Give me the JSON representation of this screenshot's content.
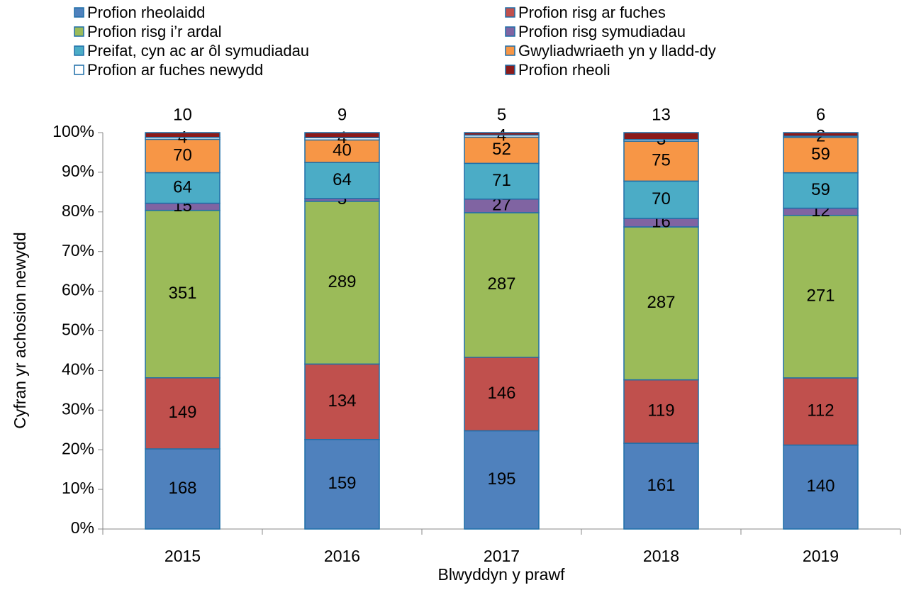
{
  "chart_data": {
    "type": "bar",
    "stacking": "percent",
    "x_label": "Blwyddyn y prawf",
    "y_label": "Cyfran yr achosion newydd",
    "categories": [
      "2015",
      "2016",
      "2017",
      "2018",
      "2019"
    ],
    "ylim": [
      0,
      100
    ],
    "yticks": [
      {
        "value": 0,
        "label": "0%"
      },
      {
        "value": 10,
        "label": "10%"
      },
      {
        "value": 20,
        "label": "20%"
      },
      {
        "value": 30,
        "label": "30%"
      },
      {
        "value": 40,
        "label": "40%"
      },
      {
        "value": 50,
        "label": "50%"
      },
      {
        "value": 60,
        "label": "60%"
      },
      {
        "value": 70,
        "label": "70%"
      },
      {
        "value": 80,
        "label": "80%"
      },
      {
        "value": 90,
        "label": "90%"
      },
      {
        "value": 100,
        "label": "100%"
      }
    ],
    "grid": false,
    "legend": "top",
    "series": [
      {
        "name": "Profion rheolaidd",
        "color": "#4f81bd",
        "values": [
          168,
          159,
          195,
          161,
          140
        ]
      },
      {
        "name": "Profion risg ar fuches",
        "color": "#c0504d",
        "values": [
          149,
          134,
          146,
          119,
          112
        ]
      },
      {
        "name": "Profion risg i’r ardal",
        "color": "#9bbb59",
        "values": [
          351,
          289,
          287,
          287,
          271
        ]
      },
      {
        "name": "Profion risg symudiadau",
        "color": "#8064a2",
        "values": [
          15,
          5,
          27,
          16,
          12
        ]
      },
      {
        "name": "Preifat, cyn ac ar ôl symudiadau",
        "color": "#4bacc6",
        "values": [
          64,
          64,
          71,
          70,
          59
        ]
      },
      {
        "name": "Gwyliadwriaeth yn y lladd-dy",
        "color": "#f79646",
        "values": [
          70,
          40,
          52,
          75,
          59
        ]
      },
      {
        "name": "Profion ar fuches newydd",
        "color": "#ffffff",
        "values": [
          4,
          4,
          4,
          3,
          2
        ]
      },
      {
        "name": "Profion rheoli",
        "color": "#8b1a1a",
        "values": [
          10,
          9,
          5,
          13,
          6
        ]
      }
    ]
  }
}
